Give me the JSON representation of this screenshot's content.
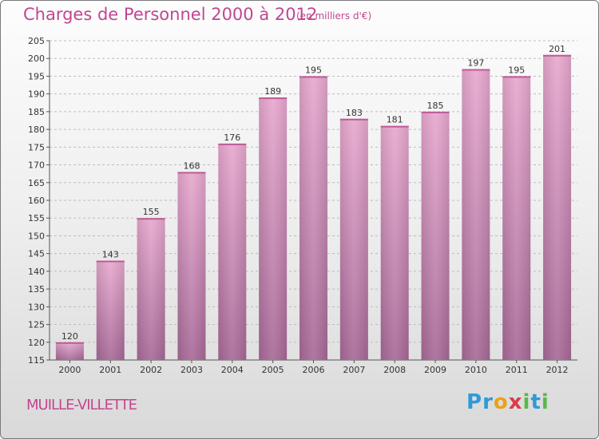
{
  "header": {
    "title": "Charges de Personnel 2000 à 2012",
    "subtitle": "(en milliers d'€)"
  },
  "footer": {
    "commune": "MUILLE-VILLETTE",
    "logo_letters": [
      "P",
      "r",
      "o",
      "x",
      "i",
      "t",
      "i"
    ],
    "logo_colors": [
      "#2f9ad8",
      "#2f9ad8",
      "#e8a21b",
      "#d93a4a",
      "#59b84a",
      "#2f9ad8",
      "#59b84a"
    ]
  },
  "colors": {
    "bar_top": "#e8a9d0",
    "bar_bottom": "#a86a98",
    "grid": "#bdbdbd"
  },
  "chart_data": {
    "type": "bar",
    "title": "Charges de Personnel 2000 à 2012",
    "subtitle": "(en milliers d'€)",
    "categories": [
      "2000",
      "2001",
      "2002",
      "2003",
      "2004",
      "2005",
      "2006",
      "2007",
      "2008",
      "2009",
      "2010",
      "2011",
      "2012"
    ],
    "values": [
      120,
      143,
      155,
      168,
      176,
      189,
      195,
      183,
      181,
      185,
      197,
      195,
      201
    ],
    "xlabel": "",
    "ylabel": "",
    "ylim": [
      115,
      205
    ],
    "yticks": [
      115,
      120,
      125,
      130,
      135,
      140,
      145,
      150,
      155,
      160,
      165,
      170,
      175,
      180,
      185,
      190,
      195,
      200,
      205
    ],
    "grid": true
  }
}
